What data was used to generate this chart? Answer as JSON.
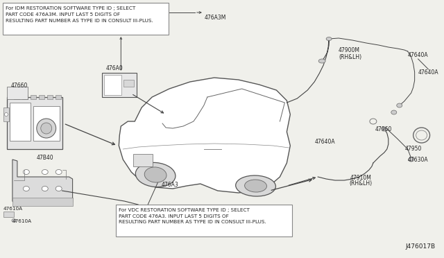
{
  "bg_color": "#f0f0eb",
  "diagram_id": "J476017B",
  "note_idm": "For IDM RESTORATION SOFTWARE TYPE ID ; SELECT\nPART CODE 476A3M. INPUT LAST 5 DIGITS OF\nRESULTING PART NUMBER AS TYPE ID IN CONSULT III-PLUS.",
  "note_vdc": "For VDC RESTORATION SOFTWARE TYPE ID ; SELECT\nPART CODE 476A3. INPUT LAST 5 DIGITS OF\nRESULTING PART NUMBER AS TYPE ID IN CONSULT III-PLUS.",
  "line_color": "#444444",
  "box_edge": "#888888",
  "label_fs": 5.8,
  "note_fs": 5.2
}
